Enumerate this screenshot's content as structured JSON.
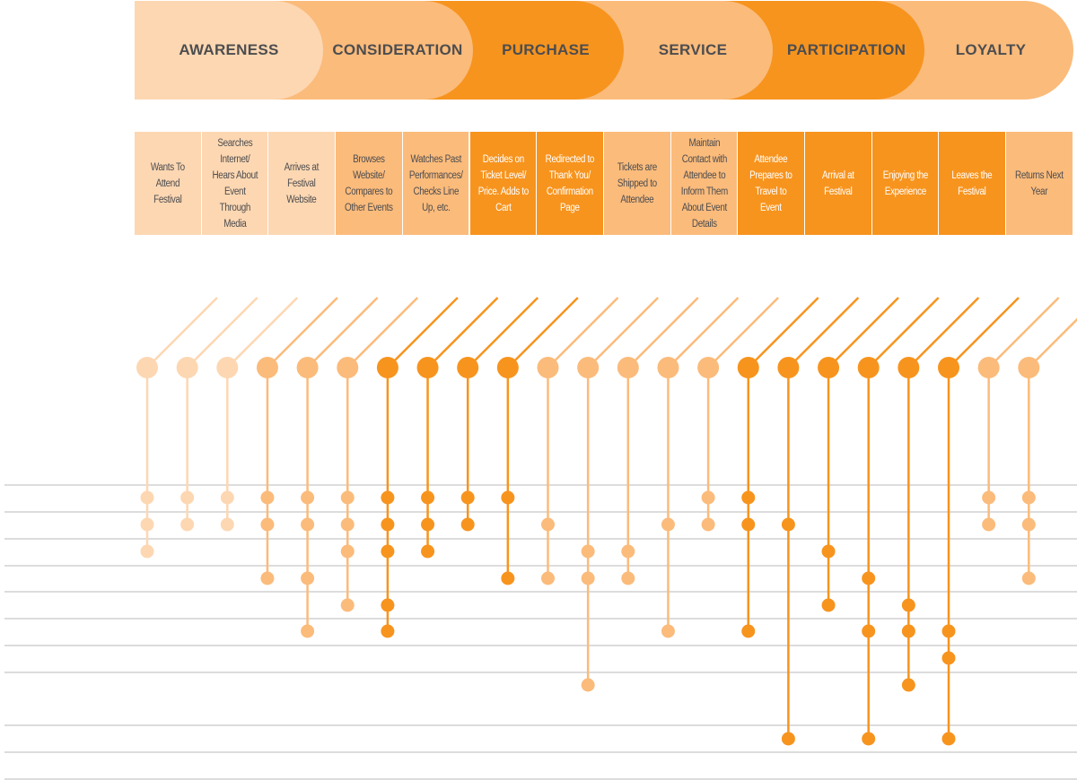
{
  "colors": {
    "c1": "#fdd7b2",
    "c2": "#fbbb7b",
    "c3": "#f7941e",
    "text_dark": "#4d4d4f",
    "text_light": "#ffffff",
    "gridline": "#c8c8c8"
  },
  "stages": [
    {
      "label": "AWARENESS",
      "color": "c1"
    },
    {
      "label": "CONSIDERATION",
      "color": "c2"
    },
    {
      "label": "PURCHASE",
      "color": "c3"
    },
    {
      "label": "SERVICE",
      "color": "c2"
    },
    {
      "label": "PARTICIPATION",
      "color": "c3"
    },
    {
      "label": "LOYALTY",
      "color": "c2"
    }
  ],
  "steps": [
    {
      "label": "Wants To Attend Festival",
      "color": "c1"
    },
    {
      "label": "Searches Internet/ Hears About Event Through Media",
      "color": "c1"
    },
    {
      "label": "Arrives at Festival Website",
      "color": "c1"
    },
    {
      "label": "Browses Website/ Compares to Other Events",
      "color": "c2"
    },
    {
      "label": "Watches Past Performances/ Checks Line Up, etc.",
      "color": "c2"
    },
    {
      "label": "Decides on Ticket Level/ Price. Adds to Cart",
      "color": "c3"
    },
    {
      "label": "Redirected to Thank You/ Confirmation Page",
      "color": "c3"
    },
    {
      "label": "Tickets are Shipped to Attendee",
      "color": "c2"
    },
    {
      "label": "Maintain Contact with Attendee to Inform Them About Event Details",
      "color": "c2"
    },
    {
      "label": "Attendee Prepares to Travel to Event",
      "color": "c3"
    },
    {
      "label": "Arrival at Festival",
      "color": "c3"
    },
    {
      "label": "Enjoying the Experience",
      "color": "c3"
    },
    {
      "label": "Leaves the Festival",
      "color": "c3"
    },
    {
      "label": "Returns Next Year",
      "color": "c2"
    }
  ],
  "touchpoints": [
    {
      "color": "c1",
      "rows": [
        0,
        1,
        2
      ]
    },
    {
      "color": "c1",
      "rows": [
        0,
        1
      ]
    },
    {
      "color": "c1",
      "rows": [
        0,
        1
      ]
    },
    {
      "color": "c2",
      "rows": [
        0,
        1,
        3
      ]
    },
    {
      "color": "c2",
      "rows": [
        0,
        1,
        3,
        5
      ]
    },
    {
      "color": "c2",
      "rows": [
        0,
        1,
        2,
        4
      ]
    },
    {
      "color": "c3",
      "rows": [
        0,
        1,
        2,
        4,
        5
      ]
    },
    {
      "color": "c3",
      "rows": [
        0,
        1,
        2
      ]
    },
    {
      "color": "c3",
      "rows": [
        0,
        1
      ]
    },
    {
      "color": "c3",
      "rows": [
        0,
        3
      ]
    },
    {
      "color": "c2",
      "rows": [
        1,
        3
      ]
    },
    {
      "color": "c2",
      "rows": [
        2,
        3,
        7
      ]
    },
    {
      "color": "c2",
      "rows": [
        2,
        3
      ]
    },
    {
      "color": "c2",
      "rows": [
        1,
        5
      ]
    },
    {
      "color": "c2",
      "rows": [
        0,
        1
      ]
    },
    {
      "color": "c3",
      "rows": [
        0,
        1,
        5
      ]
    },
    {
      "color": "c3",
      "rows": [
        1,
        9
      ]
    },
    {
      "color": "c3",
      "rows": [
        2,
        4
      ]
    },
    {
      "color": "c3",
      "rows": [
        3,
        5,
        9
      ]
    },
    {
      "color": "c3",
      "rows": [
        4,
        5,
        7
      ]
    },
    {
      "color": "c3",
      "rows": [
        5,
        6,
        9
      ]
    },
    {
      "color": "c2",
      "rows": [
        0,
        1
      ]
    },
    {
      "color": "c2",
      "rows": [
        0,
        1,
        3
      ]
    }
  ],
  "channel_rows": 11
}
